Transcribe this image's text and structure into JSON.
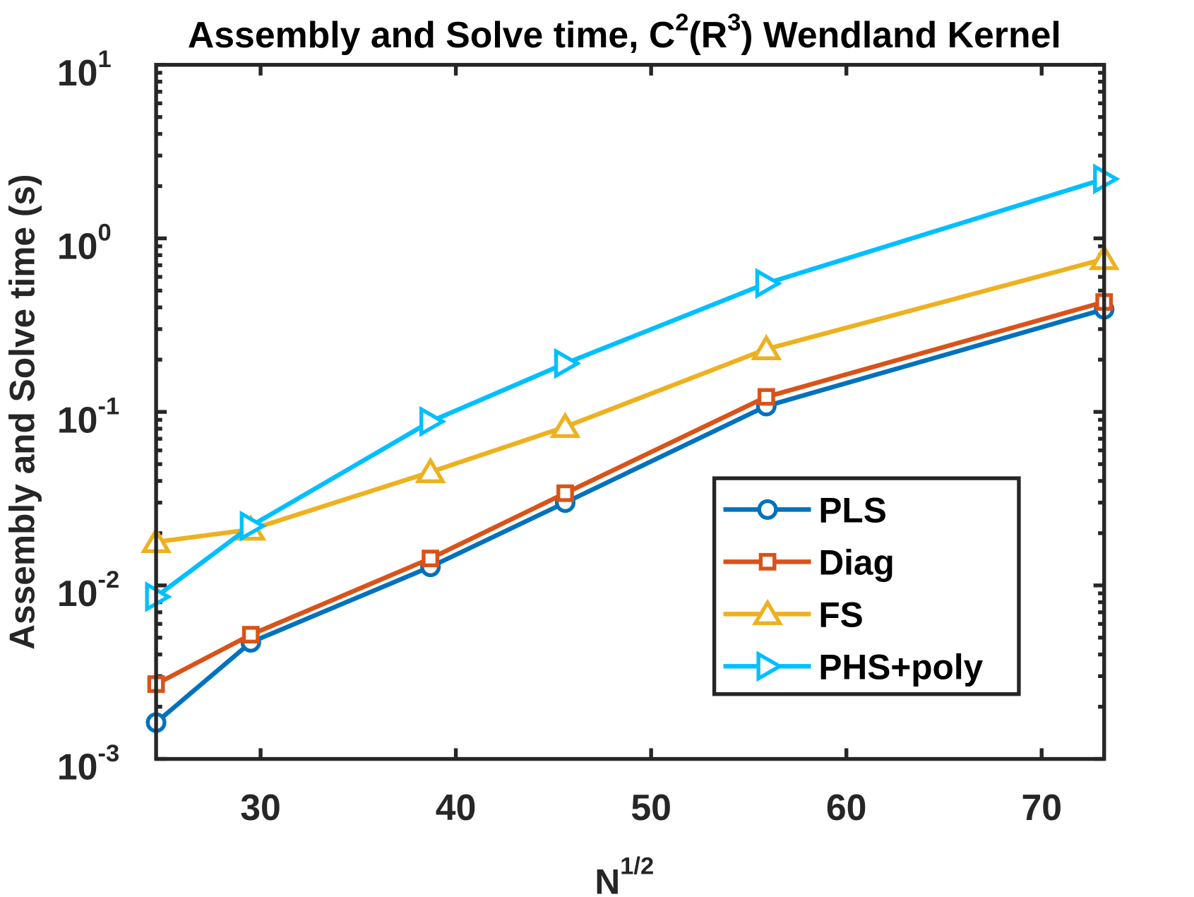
{
  "chart_data": {
    "type": "line",
    "title": {
      "part1": "Assembly and Solve time, C",
      "sup1": "2",
      "part2": "(R",
      "sup2": "3",
      "part3": ") Wendland Kernel"
    },
    "xlabel": {
      "base": "N",
      "sup": "1/2"
    },
    "ylabel": "Assembly and Solve time (s)",
    "x_scale": "linear",
    "y_scale": "log",
    "xlim": [
      24.65,
      73.2
    ],
    "ylim": [
      0.001,
      10
    ],
    "x_ticks": [
      {
        "label": "30",
        "value": 30
      },
      {
        "label": "40",
        "value": 40
      },
      {
        "label": "50",
        "value": 50
      },
      {
        "label": "60",
        "value": 60
      },
      {
        "label": "70",
        "value": 70
      }
    ],
    "y_ticks": [
      {
        "base": "10",
        "exp": "-3",
        "value": 0.001
      },
      {
        "base": "10",
        "exp": "-2",
        "value": 0.01
      },
      {
        "base": "10",
        "exp": "-1",
        "value": 0.1
      },
      {
        "base": "10",
        "exp": "0",
        "value": 1
      },
      {
        "base": "10",
        "exp": "1",
        "value": 10
      }
    ],
    "grid": false,
    "legend_position": "bottom-right",
    "x": [
      24.65,
      29.5,
      38.7,
      45.6,
      55.9,
      73.2
    ],
    "series": [
      {
        "name": "PLS",
        "color": "#0072BD",
        "marker": "circle",
        "values": [
          0.00162,
          0.0047,
          0.0128,
          0.03,
          0.108,
          0.39
        ]
      },
      {
        "name": "Diag",
        "color": "#D95319",
        "marker": "square",
        "values": [
          0.0027,
          0.0052,
          0.0143,
          0.034,
          0.122,
          0.43
        ]
      },
      {
        "name": "FS",
        "color": "#EDB120",
        "marker": "triangle-up",
        "values": [
          0.0178,
          0.021,
          0.045,
          0.082,
          0.23,
          0.76
        ]
      },
      {
        "name": "PHS+poly",
        "color": "#00BFFF",
        "marker": "triangle-right",
        "values": [
          0.0086,
          0.022,
          0.088,
          0.19,
          0.55,
          2.2
        ]
      }
    ]
  }
}
